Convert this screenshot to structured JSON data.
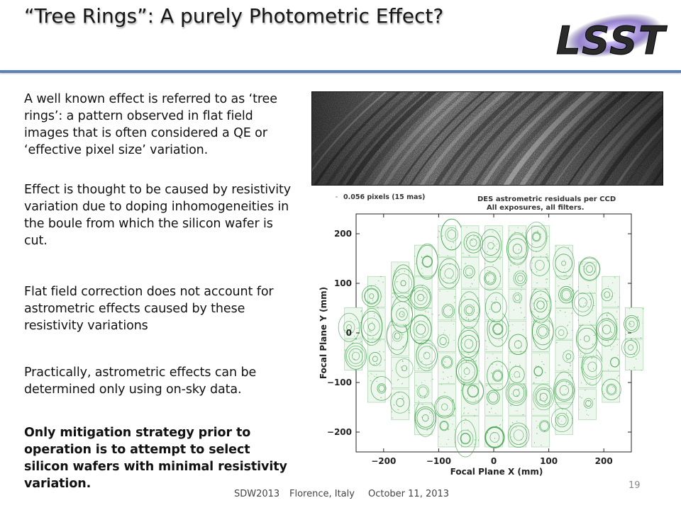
{
  "slide": {
    "title": "“Tree Rings”:  A purely Photometric Effect?",
    "logo_text": "LSST",
    "paragraphs": [
      {
        "text": "A well known effect is referred to as ‘tree rings’: a pattern observed in flat field images that is often considered a QE or ‘effective pixel size’ variation.",
        "bold": false
      },
      {
        "text": "Effect is thought to be caused by resistivity variation due to doping inhomogeneities in the boule from which the silicon wafer is cut.",
        "bold": false
      },
      {
        "text": "Flat field correction does not account for astrometric effects caused by these resistivity variations",
        "bold": false
      },
      {
        "text": "Practically, astrometric effects can be determined only using on-sky data.",
        "bold": false
      },
      {
        "text": "Only mitigation strategy prior to operation is to attempt to select silicon wafers with minimal resistivity variation.",
        "bold": true
      }
    ],
    "footer": {
      "event": "SDW2013",
      "location": "Florence, Italy",
      "date": "October 11, 2013",
      "page": "19"
    }
  },
  "chart_data": {
    "type": "scatter",
    "title": "DES astrometric residuals per CCD",
    "subtitle": "All exposures, all filters.",
    "legend": "0.056 pixels (15 mas)",
    "xlabel": "Focal Plane X (mm)",
    "ylabel": "Focal Plane Y (mm)",
    "xlim": [
      -250,
      250
    ],
    "ylim": [
      -240,
      240
    ],
    "xticks": [
      -200,
      -100,
      0,
      100,
      200
    ],
    "yticks": [
      -200,
      -100,
      0,
      100,
      200
    ],
    "xtick_labels": [
      "−200",
      "−100",
      "0",
      "100",
      "200"
    ],
    "ytick_labels": [
      "−200",
      "−100",
      "0",
      "100",
      "200"
    ],
    "columns": [
      {
        "x": -255,
        "ymin": -75,
        "ymax": 75
      },
      {
        "x": -213,
        "ymin": -140,
        "ymax": 140
      },
      {
        "x": -170,
        "ymin": -175,
        "ymax": 175
      },
      {
        "x": -128,
        "ymin": -205,
        "ymax": 205
      },
      {
        "x": -85,
        "ymin": -230,
        "ymax": 230
      },
      {
        "x": -43,
        "ymin": -230,
        "ymax": 230
      },
      {
        "x": 0,
        "ymin": -230,
        "ymax": 230
      },
      {
        "x": 43,
        "ymin": -230,
        "ymax": 230
      },
      {
        "x": 85,
        "ymin": -230,
        "ymax": 230
      },
      {
        "x": 128,
        "ymin": -205,
        "ymax": 205
      },
      {
        "x": 170,
        "ymin": -175,
        "ymax": 175
      },
      {
        "x": 213,
        "ymin": -140,
        "ymax": 140
      },
      {
        "x": 255,
        "ymin": -75,
        "ymax": 75
      }
    ],
    "ccd_width_mm": 32,
    "ccd_height_mm": 62,
    "marker_color": "#2e9a3a"
  }
}
